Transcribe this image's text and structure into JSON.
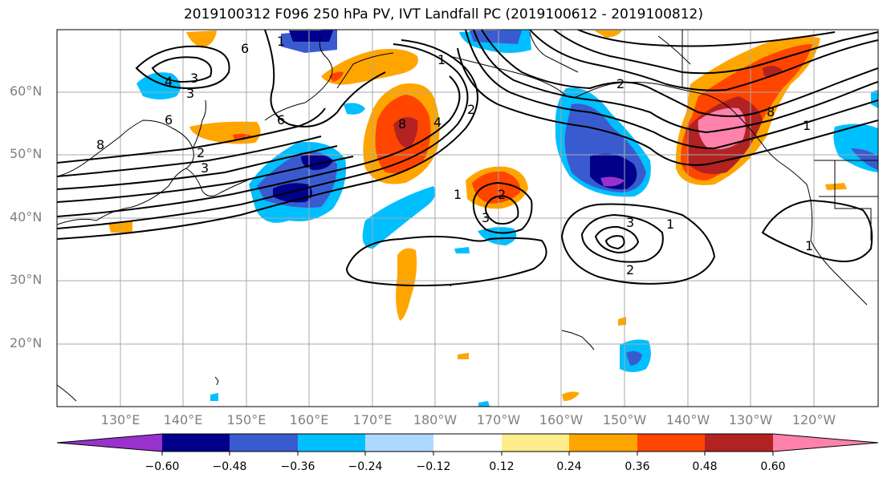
{
  "title": "2019100312 F096 250 hPa PV, IVT Landfall PC (2019100612 - 2019100812)",
  "lat_labels": [
    "60°N",
    "50°N",
    "40°N",
    "30°N",
    "20°N"
  ],
  "lon_labels": [
    "130°E",
    "140°E",
    "150°E",
    "160°E",
    "170°E",
    "180°W",
    "170°W",
    "160°W",
    "150°W",
    "140°W",
    "130°W",
    "120°W"
  ],
  "colorbar": {
    "colors": [
      "#9932cc",
      "#00008b",
      "#3a5bcf",
      "#00bfff",
      "#add8ff",
      "#ffffff",
      "#ffffff",
      "#ffec8b",
      "#ffa500",
      "#ff4500",
      "#b22222",
      "#ff82ab"
    ],
    "tick_labels": [
      "−0.60",
      "−0.48",
      "−0.36",
      "−0.24",
      "−0.12",
      "0.12",
      "0.24",
      "0.36",
      "0.48",
      "0.60"
    ]
  },
  "contour_labels": [
    "6",
    "1",
    "3",
    "4",
    "3",
    "6",
    "8",
    "6",
    "2",
    "3",
    "1",
    "8",
    "4",
    "2",
    "1",
    "2",
    "3",
    "3",
    "2",
    "1",
    "8",
    "1",
    "2",
    "1"
  ]
}
